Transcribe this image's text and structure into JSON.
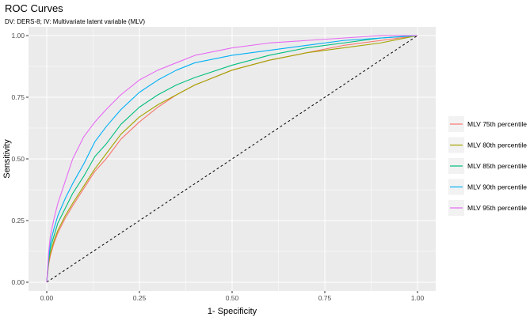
{
  "chart_data": {
    "type": "line",
    "title": "ROC Curves",
    "subtitle": "DV: DERS-8; IV: Multivariate latent variable (MLV)",
    "xlabel": "1- Specificity",
    "ylabel": "Sensitivity",
    "xlim": [
      0,
      1
    ],
    "ylim": [
      0,
      1
    ],
    "x_ticks": [
      0,
      0.25,
      0.5,
      0.75,
      1
    ],
    "y_ticks": [
      0,
      0.25,
      0.5,
      0.75,
      1
    ],
    "x_tick_labels": [
      "0.00",
      "0.25",
      "0.50",
      "0.75",
      "1.00"
    ],
    "y_tick_labels": [
      "0.00",
      "0.25",
      "0.50",
      "0.75",
      "1.00"
    ],
    "grid": true,
    "legend_position": "right",
    "reference_line": {
      "x": [
        0,
        1
      ],
      "y": [
        0,
        1
      ],
      "style": "dashed",
      "color": "#000000"
    },
    "series": [
      {
        "name": "MLV 75th percentile",
        "color": "#F8766D",
        "points": [
          [
            0,
            0
          ],
          [
            0.005,
            0.07
          ],
          [
            0.01,
            0.11
          ],
          [
            0.02,
            0.16
          ],
          [
            0.03,
            0.2
          ],
          [
            0.05,
            0.26
          ],
          [
            0.07,
            0.31
          ],
          [
            0.1,
            0.38
          ],
          [
            0.13,
            0.45
          ],
          [
            0.16,
            0.5
          ],
          [
            0.2,
            0.58
          ],
          [
            0.25,
            0.65
          ],
          [
            0.3,
            0.71
          ],
          [
            0.35,
            0.76
          ],
          [
            0.4,
            0.8
          ],
          [
            0.5,
            0.86
          ],
          [
            0.6,
            0.9
          ],
          [
            0.7,
            0.93
          ],
          [
            0.8,
            0.96
          ],
          [
            0.9,
            0.98
          ],
          [
            1,
            1
          ]
        ]
      },
      {
        "name": "MLV 80th percentile",
        "color": "#A3A500",
        "points": [
          [
            0,
            0
          ],
          [
            0.005,
            0.08
          ],
          [
            0.01,
            0.12
          ],
          [
            0.02,
            0.17
          ],
          [
            0.03,
            0.21
          ],
          [
            0.05,
            0.27
          ],
          [
            0.07,
            0.32
          ],
          [
            0.1,
            0.39
          ],
          [
            0.13,
            0.46
          ],
          [
            0.16,
            0.52
          ],
          [
            0.2,
            0.6
          ],
          [
            0.25,
            0.67
          ],
          [
            0.3,
            0.72
          ],
          [
            0.35,
            0.76
          ],
          [
            0.4,
            0.8
          ],
          [
            0.5,
            0.86
          ],
          [
            0.6,
            0.9
          ],
          [
            0.7,
            0.93
          ],
          [
            0.8,
            0.95
          ],
          [
            0.9,
            0.97
          ],
          [
            1,
            1
          ]
        ]
      },
      {
        "name": "MLV 85th percentile",
        "color": "#00BF7D",
        "points": [
          [
            0,
            0
          ],
          [
            0.005,
            0.09
          ],
          [
            0.01,
            0.14
          ],
          [
            0.02,
            0.19
          ],
          [
            0.03,
            0.24
          ],
          [
            0.05,
            0.3
          ],
          [
            0.07,
            0.36
          ],
          [
            0.1,
            0.43
          ],
          [
            0.13,
            0.51
          ],
          [
            0.16,
            0.56
          ],
          [
            0.2,
            0.64
          ],
          [
            0.25,
            0.71
          ],
          [
            0.3,
            0.76
          ],
          [
            0.35,
            0.8
          ],
          [
            0.4,
            0.83
          ],
          [
            0.5,
            0.88
          ],
          [
            0.6,
            0.92
          ],
          [
            0.7,
            0.95
          ],
          [
            0.8,
            0.97
          ],
          [
            0.9,
            0.99
          ],
          [
            1,
            1
          ]
        ]
      },
      {
        "name": "MLV 90th percentile",
        "color": "#00B0F6",
        "points": [
          [
            0,
            0
          ],
          [
            0.005,
            0.1
          ],
          [
            0.01,
            0.16
          ],
          [
            0.02,
            0.22
          ],
          [
            0.03,
            0.27
          ],
          [
            0.05,
            0.34
          ],
          [
            0.07,
            0.4
          ],
          [
            0.1,
            0.48
          ],
          [
            0.13,
            0.57
          ],
          [
            0.16,
            0.63
          ],
          [
            0.2,
            0.7
          ],
          [
            0.25,
            0.77
          ],
          [
            0.3,
            0.82
          ],
          [
            0.35,
            0.86
          ],
          [
            0.4,
            0.89
          ],
          [
            0.5,
            0.92
          ],
          [
            0.6,
            0.94
          ],
          [
            0.7,
            0.96
          ],
          [
            0.8,
            0.98
          ],
          [
            0.9,
            0.99
          ],
          [
            1,
            1
          ]
        ]
      },
      {
        "name": "MLV 95th percentile",
        "color": "#E76BF3",
        "points": [
          [
            0,
            0
          ],
          [
            0.005,
            0.12
          ],
          [
            0.01,
            0.19
          ],
          [
            0.02,
            0.26
          ],
          [
            0.03,
            0.32
          ],
          [
            0.05,
            0.41
          ],
          [
            0.07,
            0.5
          ],
          [
            0.1,
            0.59
          ],
          [
            0.13,
            0.65
          ],
          [
            0.16,
            0.7
          ],
          [
            0.2,
            0.76
          ],
          [
            0.25,
            0.82
          ],
          [
            0.3,
            0.86
          ],
          [
            0.35,
            0.89
          ],
          [
            0.4,
            0.92
          ],
          [
            0.5,
            0.95
          ],
          [
            0.6,
            0.97
          ],
          [
            0.7,
            0.98
          ],
          [
            0.8,
            0.99
          ],
          [
            0.9,
            1
          ],
          [
            1,
            1
          ]
        ]
      }
    ]
  }
}
